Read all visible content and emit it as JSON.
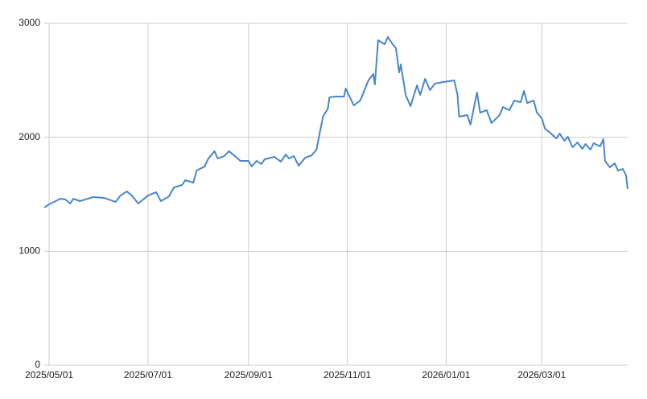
{
  "chart_data": {
    "type": "line",
    "x": [
      "2025/04/28",
      "2025/05/01",
      "2025/05/08",
      "2025/05/11",
      "2025/05/14",
      "2025/05/16",
      "2025/05/20",
      "2025/05/28",
      "2025/06/04",
      "2025/06/11",
      "2025/06/14",
      "2025/06/18",
      "2025/06/21",
      "2025/06/25",
      "2025/07/01",
      "2025/07/06",
      "2025/07/09",
      "2025/07/14",
      "2025/07/17",
      "2025/07/22",
      "2025/07/24",
      "2025/07/29",
      "2025/07/31",
      "2025/08/05",
      "2025/08/07",
      "2025/08/11",
      "2025/08/13",
      "2025/08/17",
      "2025/08/20",
      "2025/08/23",
      "2025/08/27",
      "2025/09/01",
      "2025/09/03",
      "2025/09/06",
      "2025/09/09",
      "2025/09/11",
      "2025/09/17",
      "2025/09/21",
      "2025/09/24",
      "2025/09/26",
      "2025/09/29",
      "2025/10/02",
      "2025/10/06",
      "2025/10/10",
      "2025/10/13",
      "2025/10/15",
      "2025/10/17",
      "2025/10/20",
      "2025/10/21",
      "2025/10/25",
      "2025/10/30",
      "2025/10/31",
      "2025/11/05",
      "2025/11/09",
      "2025/11/11",
      "2025/11/14",
      "2025/11/17",
      "2025/11/18",
      "2025/11/20",
      "2025/11/24",
      "2025/11/26",
      "2025/11/29",
      "2025/12/01",
      "2025/12/03",
      "2025/12/04",
      "2025/12/07",
      "2025/12/10",
      "2025/12/14",
      "2025/12/16",
      "2025/12/19",
      "2025/12/22",
      "2025/12/25",
      "2025/12/30",
      "2026/01/06",
      "2026/01/08",
      "2026/01/09",
      "2026/01/14",
      "2026/01/16",
      "2026/01/20",
      "2026/01/22",
      "2026/01/26",
      "2026/01/29",
      "2026/02/03",
      "2026/02/05",
      "2026/02/09",
      "2026/02/12",
      "2026/02/16",
      "2026/02/18",
      "2026/02/20",
      "2026/02/24",
      "2026/02/26",
      "2026/03/01",
      "2026/03/03",
      "2026/03/05",
      "2026/03/10",
      "2026/03/12",
      "2026/03/15",
      "2026/03/17",
      "2026/03/20",
      "2026/03/23",
      "2026/03/26",
      "2026/03/28",
      "2026/03/31",
      "2026/04/02",
      "2026/04/06",
      "2026/04/08",
      "2026/04/09",
      "2026/04/12",
      "2026/04/15",
      "2026/04/17",
      "2026/04/20",
      "2026/04/22",
      "2026/04/23"
    ],
    "series": [
      {
        "color": "#4a86c8",
        "values": [
          1384,
          1412,
          1461,
          1454,
          1419,
          1461,
          1440,
          1475,
          1468,
          1433,
          1489,
          1525,
          1489,
          1419,
          1489,
          1518,
          1440,
          1482,
          1560,
          1581,
          1624,
          1602,
          1708,
          1744,
          1807,
          1878,
          1814,
          1835,
          1878,
          1842,
          1793,
          1793,
          1744,
          1793,
          1765,
          1807,
          1828,
          1786,
          1849,
          1814,
          1835,
          1751,
          1821,
          1842,
          1892,
          2040,
          2181,
          2252,
          2351,
          2358,
          2358,
          2428,
          2280,
          2322,
          2393,
          2499,
          2555,
          2464,
          2852,
          2816,
          2880,
          2816,
          2781,
          2569,
          2640,
          2372,
          2273,
          2456,
          2372,
          2513,
          2414,
          2471,
          2485,
          2499,
          2372,
          2181,
          2195,
          2111,
          2393,
          2216,
          2238,
          2125,
          2195,
          2266,
          2238,
          2322,
          2308,
          2407,
          2301,
          2322,
          2216,
          2167,
          2075,
          2054,
          1990,
          2033,
          1969,
          2005,
          1913,
          1955,
          1899,
          1941,
          1892,
          1948,
          1920,
          1983,
          1793,
          1736,
          1772,
          1708,
          1722,
          1666,
          1546
        ]
      }
    ],
    "xlim": [
      "2025/04/28",
      "2026/04/23"
    ],
    "xticks": [
      "2025/05/01",
      "2025/07/01",
      "2025/09/01",
      "2025/11/01",
      "2026/01/01",
      "2026/03/01"
    ],
    "ylim": [
      0,
      3000
    ],
    "yticks": [
      0,
      1000,
      2000,
      3000
    ],
    "grid": true
  }
}
